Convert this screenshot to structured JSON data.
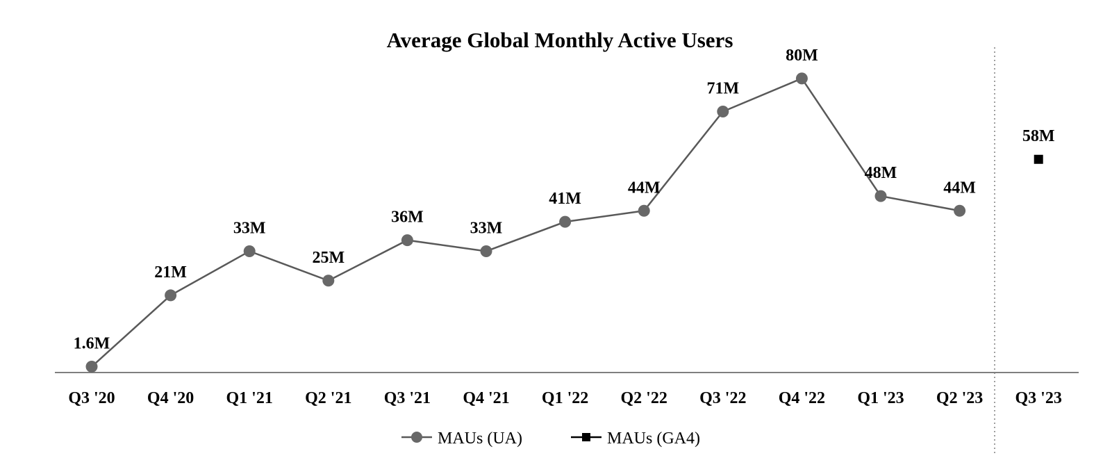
{
  "chart_data": {
    "type": "line",
    "title": "Average Global Monthly Active Users",
    "xlabel": "",
    "ylabel": "",
    "categories": [
      "Q3 '20",
      "Q4 '20",
      "Q1 '21",
      "Q2 '21",
      "Q3 '21",
      "Q4 '21",
      "Q1 '22",
      "Q2 '22",
      "Q3 '22",
      "Q4 '22",
      "Q1 '23",
      "Q2 '23",
      "Q3 '23"
    ],
    "ylim": [
      0,
      90
    ],
    "grid": false,
    "legend_position": "bottom-center",
    "series": [
      {
        "name": "MAUs (UA)",
        "marker": "circle",
        "color": "#686868",
        "line_color": "#595959",
        "values": [
          1.6,
          21,
          33,
          25,
          36,
          33,
          41,
          44,
          71,
          80,
          48,
          44,
          null
        ],
        "labels": [
          "1.6M",
          "21M",
          "33M",
          "25M",
          "36M",
          "33M",
          "41M",
          "44M",
          "71M",
          "80M",
          "48M",
          "44M",
          null
        ]
      },
      {
        "name": "MAUs (GA4)",
        "marker": "square",
        "color": "#000000",
        "line_color": "#000000",
        "values": [
          null,
          null,
          null,
          null,
          null,
          null,
          null,
          null,
          null,
          null,
          null,
          null,
          58
        ],
        "labels": [
          null,
          null,
          null,
          null,
          null,
          null,
          null,
          null,
          null,
          null,
          null,
          null,
          "58M"
        ]
      }
    ],
    "separator": {
      "between_categories": [
        "Q2 '23",
        "Q3 '23"
      ],
      "style": "dotted"
    }
  }
}
